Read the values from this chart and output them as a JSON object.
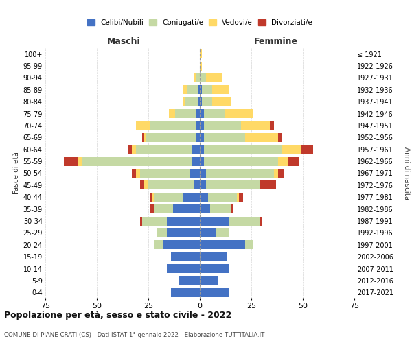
{
  "age_groups": [
    "0-4",
    "5-9",
    "10-14",
    "15-19",
    "20-24",
    "25-29",
    "30-34",
    "35-39",
    "40-44",
    "45-49",
    "50-54",
    "55-59",
    "60-64",
    "65-69",
    "70-74",
    "75-79",
    "80-84",
    "85-89",
    "90-94",
    "95-99",
    "100+"
  ],
  "birth_years": [
    "2017-2021",
    "2012-2016",
    "2007-2011",
    "2002-2006",
    "1997-2001",
    "1992-1996",
    "1987-1991",
    "1982-1986",
    "1977-1981",
    "1972-1976",
    "1967-1971",
    "1962-1966",
    "1957-1961",
    "1952-1956",
    "1947-1951",
    "1942-1946",
    "1937-1941",
    "1932-1936",
    "1927-1931",
    "1922-1926",
    "≤ 1921"
  ],
  "maschi_celibe": [
    14,
    10,
    16,
    14,
    18,
    16,
    16,
    13,
    8,
    3,
    5,
    4,
    4,
    2,
    2,
    2,
    1,
    1,
    0,
    0,
    0
  ],
  "maschi_coniugato": [
    0,
    0,
    0,
    0,
    4,
    5,
    12,
    9,
    14,
    22,
    24,
    53,
    27,
    24,
    22,
    10,
    6,
    5,
    2,
    0,
    0
  ],
  "maschi_vedovo": [
    0,
    0,
    0,
    0,
    0,
    0,
    0,
    0,
    1,
    2,
    2,
    2,
    2,
    1,
    7,
    3,
    1,
    2,
    1,
    0,
    0
  ],
  "maschi_divorziato": [
    0,
    0,
    0,
    0,
    0,
    0,
    1,
    2,
    1,
    2,
    2,
    7,
    2,
    1,
    0,
    0,
    0,
    0,
    0,
    0,
    0
  ],
  "femmine_celibe": [
    14,
    9,
    14,
    13,
    22,
    8,
    14,
    5,
    4,
    3,
    3,
    2,
    2,
    2,
    2,
    2,
    1,
    1,
    0,
    0,
    0
  ],
  "femmine_coniugata": [
    0,
    0,
    0,
    0,
    4,
    6,
    15,
    10,
    14,
    26,
    33,
    36,
    38,
    20,
    18,
    10,
    5,
    5,
    3,
    0,
    0
  ],
  "femmine_vedova": [
    0,
    0,
    0,
    0,
    0,
    0,
    0,
    0,
    1,
    0,
    2,
    5,
    9,
    16,
    14,
    14,
    9,
    8,
    8,
    1,
    1
  ],
  "femmine_divorziata": [
    0,
    0,
    0,
    0,
    0,
    0,
    1,
    1,
    2,
    8,
    3,
    5,
    6,
    2,
    2,
    0,
    0,
    0,
    0,
    0,
    0
  ],
  "colors": {
    "celibe": "#4472c4",
    "coniugato": "#c5d9a4",
    "vedovo": "#ffd966",
    "divorziato": "#c0392b"
  },
  "xlim": 75,
  "title": "Popolazione per età, sesso e stato civile - 2022",
  "subtitle": "COMUNE DI PIANE CRATI (CS) - Dati ISTAT 1° gennaio 2022 - Elaborazione TUTTITALIA.IT",
  "ylabel_left": "Fasce di età",
  "ylabel_right": "Anni di nascita",
  "xlabel_left": "Maschi",
  "xlabel_right": "Femmine",
  "legend_labels": [
    "Celibi/Nubili",
    "Coniugati/e",
    "Vedovi/e",
    "Divorziati/e"
  ],
  "background_color": "#ffffff",
  "grid_color": "#cccccc"
}
